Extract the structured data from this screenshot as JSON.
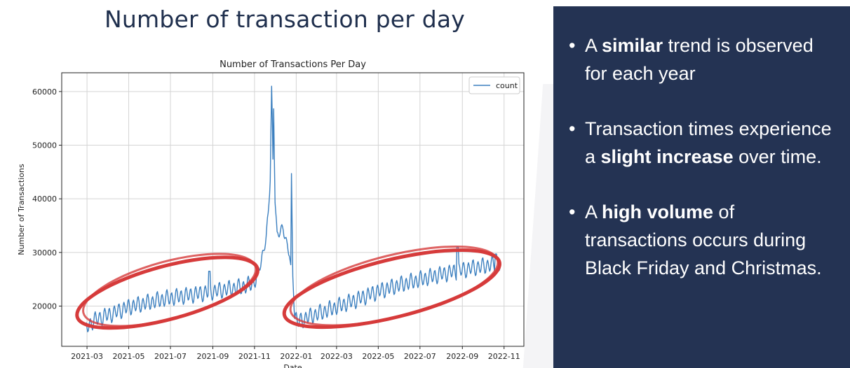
{
  "slide": {
    "title": "Number of transaction per day"
  },
  "chart_data": {
    "type": "line",
    "title": "Number of Transactions Per Day",
    "xlabel": "Date",
    "ylabel": "Number of Transactions",
    "x_ticks": [
      "2021-03",
      "2021-05",
      "2021-07",
      "2021-09",
      "2021-11",
      "2022-01",
      "2022-03",
      "2022-05",
      "2022-07",
      "2022-09",
      "2022-11"
    ],
    "y_ticks": [
      20000,
      30000,
      40000,
      50000,
      60000
    ],
    "x_range": [
      "2021-01-23",
      "2022-11-30"
    ],
    "ylim": [
      12500,
      63500
    ],
    "grid": true,
    "legend": "top-right",
    "series": [
      {
        "name": "count",
        "color": "#3b7fbf",
        "points": [
          [
            "2021-02-28",
            16000
          ],
          [
            "2021-03-10",
            17200
          ],
          [
            "2021-03-20",
            17800
          ],
          [
            "2021-03-31",
            18300
          ],
          [
            "2021-04-10",
            18700
          ],
          [
            "2021-04-20",
            19300
          ],
          [
            "2021-04-30",
            19800
          ],
          [
            "2021-05-10",
            20100
          ],
          [
            "2021-05-20",
            20400
          ],
          [
            "2021-05-31",
            20700
          ],
          [
            "2021-06-10",
            21000
          ],
          [
            "2021-06-20",
            21300
          ],
          [
            "2021-06-30",
            21500
          ],
          [
            "2021-07-10",
            21700
          ],
          [
            "2021-07-20",
            21900
          ],
          [
            "2021-07-31",
            22100
          ],
          [
            "2021-08-10",
            22300
          ],
          [
            "2021-08-20",
            22500
          ],
          [
            "2021-08-31",
            22700
          ],
          [
            "2021-09-10",
            22900
          ],
          [
            "2021-09-20",
            23100
          ],
          [
            "2021-09-30",
            23300
          ],
          [
            "2021-10-10",
            23500
          ],
          [
            "2021-10-20",
            23800
          ],
          [
            "2021-10-31",
            24300
          ],
          [
            "2021-11-05",
            26000
          ],
          [
            "2021-11-10",
            28000
          ],
          [
            "2021-11-14",
            30000
          ],
          [
            "2021-11-18",
            33000
          ],
          [
            "2021-11-21",
            37000
          ],
          [
            "2021-11-24",
            44000
          ],
          [
            "2021-11-26",
            61000
          ],
          [
            "2021-11-28",
            47000
          ],
          [
            "2021-11-29",
            56800
          ],
          [
            "2021-12-01",
            40000
          ],
          [
            "2021-12-04",
            33000
          ],
          [
            "2021-12-08",
            34000
          ],
          [
            "2021-12-13",
            34500
          ],
          [
            "2021-12-18",
            31500
          ],
          [
            "2021-12-22",
            30000
          ],
          [
            "2021-12-24",
            27000
          ],
          [
            "2021-12-25",
            44700
          ],
          [
            "2021-12-27",
            26000
          ],
          [
            "2021-12-30",
            18000
          ],
          [
            "2022-01-05",
            17000
          ],
          [
            "2022-01-15",
            17800
          ],
          [
            "2022-01-31",
            18500
          ],
          [
            "2022-02-15",
            19200
          ],
          [
            "2022-02-28",
            19800
          ],
          [
            "2022-03-15",
            20500
          ],
          [
            "2022-03-31",
            21200
          ],
          [
            "2022-04-15",
            22000
          ],
          [
            "2022-04-30",
            22700
          ],
          [
            "2022-05-15",
            23300
          ],
          [
            "2022-05-31",
            23900
          ],
          [
            "2022-06-15",
            24400
          ],
          [
            "2022-06-30",
            24900
          ],
          [
            "2022-07-15",
            25400
          ],
          [
            "2022-07-31",
            25900
          ],
          [
            "2022-08-15",
            26300
          ],
          [
            "2022-08-31",
            26700
          ],
          [
            "2022-09-15",
            27100
          ],
          [
            "2022-09-30",
            27400
          ],
          [
            "2022-10-15",
            27800
          ],
          [
            "2022-10-27",
            28000
          ]
        ],
        "weekly_amplitude": 1300,
        "spikes": [
          [
            "2021-08-27",
            26500
          ],
          [
            "2022-08-25",
            31000
          ],
          [
            "2022-10-20",
            29700
          ]
        ]
      }
    ],
    "annotations": [
      {
        "kind": "ellipse",
        "color": "#d63b3b",
        "from": "2021-02-10",
        "to": "2021-11-10",
        "y_range": [
          13500,
          31500
        ]
      },
      {
        "kind": "ellipse",
        "color": "#d63b3b",
        "from": "2021-12-10",
        "to": "2022-10-30",
        "y_range": [
          13500,
          33000
        ]
      }
    ]
  },
  "panel": {
    "bullet_char": "•",
    "bullets": [
      {
        "before": "A ",
        "bold": "similar",
        "after": " trend is observed for each year"
      },
      {
        "before": "Transaction times experience a ",
        "bold": "slight increase",
        "after": " over time."
      },
      {
        "before": "A ",
        "bold": "high volume",
        "after": " of transactions occurs during Black Friday and Christmas."
      }
    ]
  }
}
